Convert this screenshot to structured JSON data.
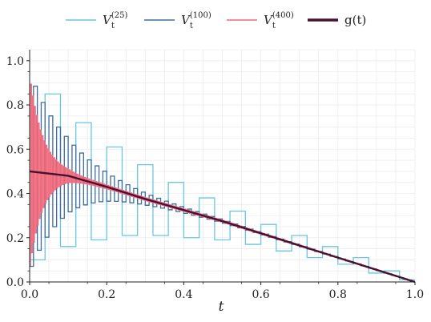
{
  "chart_data": {
    "type": "line",
    "xlabel": "t",
    "ylabel": "",
    "xlim": [
      0.0,
      1.0
    ],
    "ylim": [
      0.0,
      1.05
    ],
    "x_ticks": [
      "0.0",
      "0.2",
      "0.4",
      "0.6",
      "0.8",
      "1.0"
    ],
    "y_ticks": [
      "0.0",
      "0.2",
      "0.4",
      "0.6",
      "0.8",
      "1.0"
    ],
    "grid": true,
    "legend_position": "top",
    "legend": {
      "v25": {
        "base": "V",
        "sub": "t",
        "sup": "(25)"
      },
      "v100": {
        "base": "V",
        "sub": "t",
        "sup": "(100)"
      },
      "v400": {
        "base": "V",
        "sub": "t",
        "sup": "(400)"
      },
      "g": {
        "label": "g(t)"
      }
    },
    "series": [
      {
        "name": "V_t^(25)",
        "kind": "step",
        "n": 25,
        "color": "#67c8e0",
        "description_x": "t from 0 to 1",
        "values": [
          0.1,
          0.85,
          0.16,
          0.72,
          0.19,
          0.61,
          0.21,
          0.53,
          0.21,
          0.45,
          0.2,
          0.38,
          0.19,
          0.32,
          0.17,
          0.26,
          0.14,
          0.21,
          0.11,
          0.16,
          0.08,
          0.11,
          0.04,
          0.05,
          0.01
        ]
      },
      {
        "name": "V_t^(100)",
        "kind": "step",
        "n": 100,
        "color": "#3c6e9f"
      },
      {
        "name": "V_t^(400)",
        "kind": "step",
        "n": 400,
        "color": "#f0687a"
      },
      {
        "name": "g(t)",
        "kind": "line",
        "color": "#4a1030",
        "x": [
          0.0,
          0.1,
          0.2,
          0.3,
          0.4,
          0.5,
          0.6,
          0.7,
          0.8,
          0.9,
          1.0
        ],
        "y": [
          0.5,
          0.48,
          0.43,
          0.375,
          0.325,
          0.275,
          0.22,
          0.165,
          0.11,
          0.055,
          0.0
        ]
      }
    ]
  }
}
